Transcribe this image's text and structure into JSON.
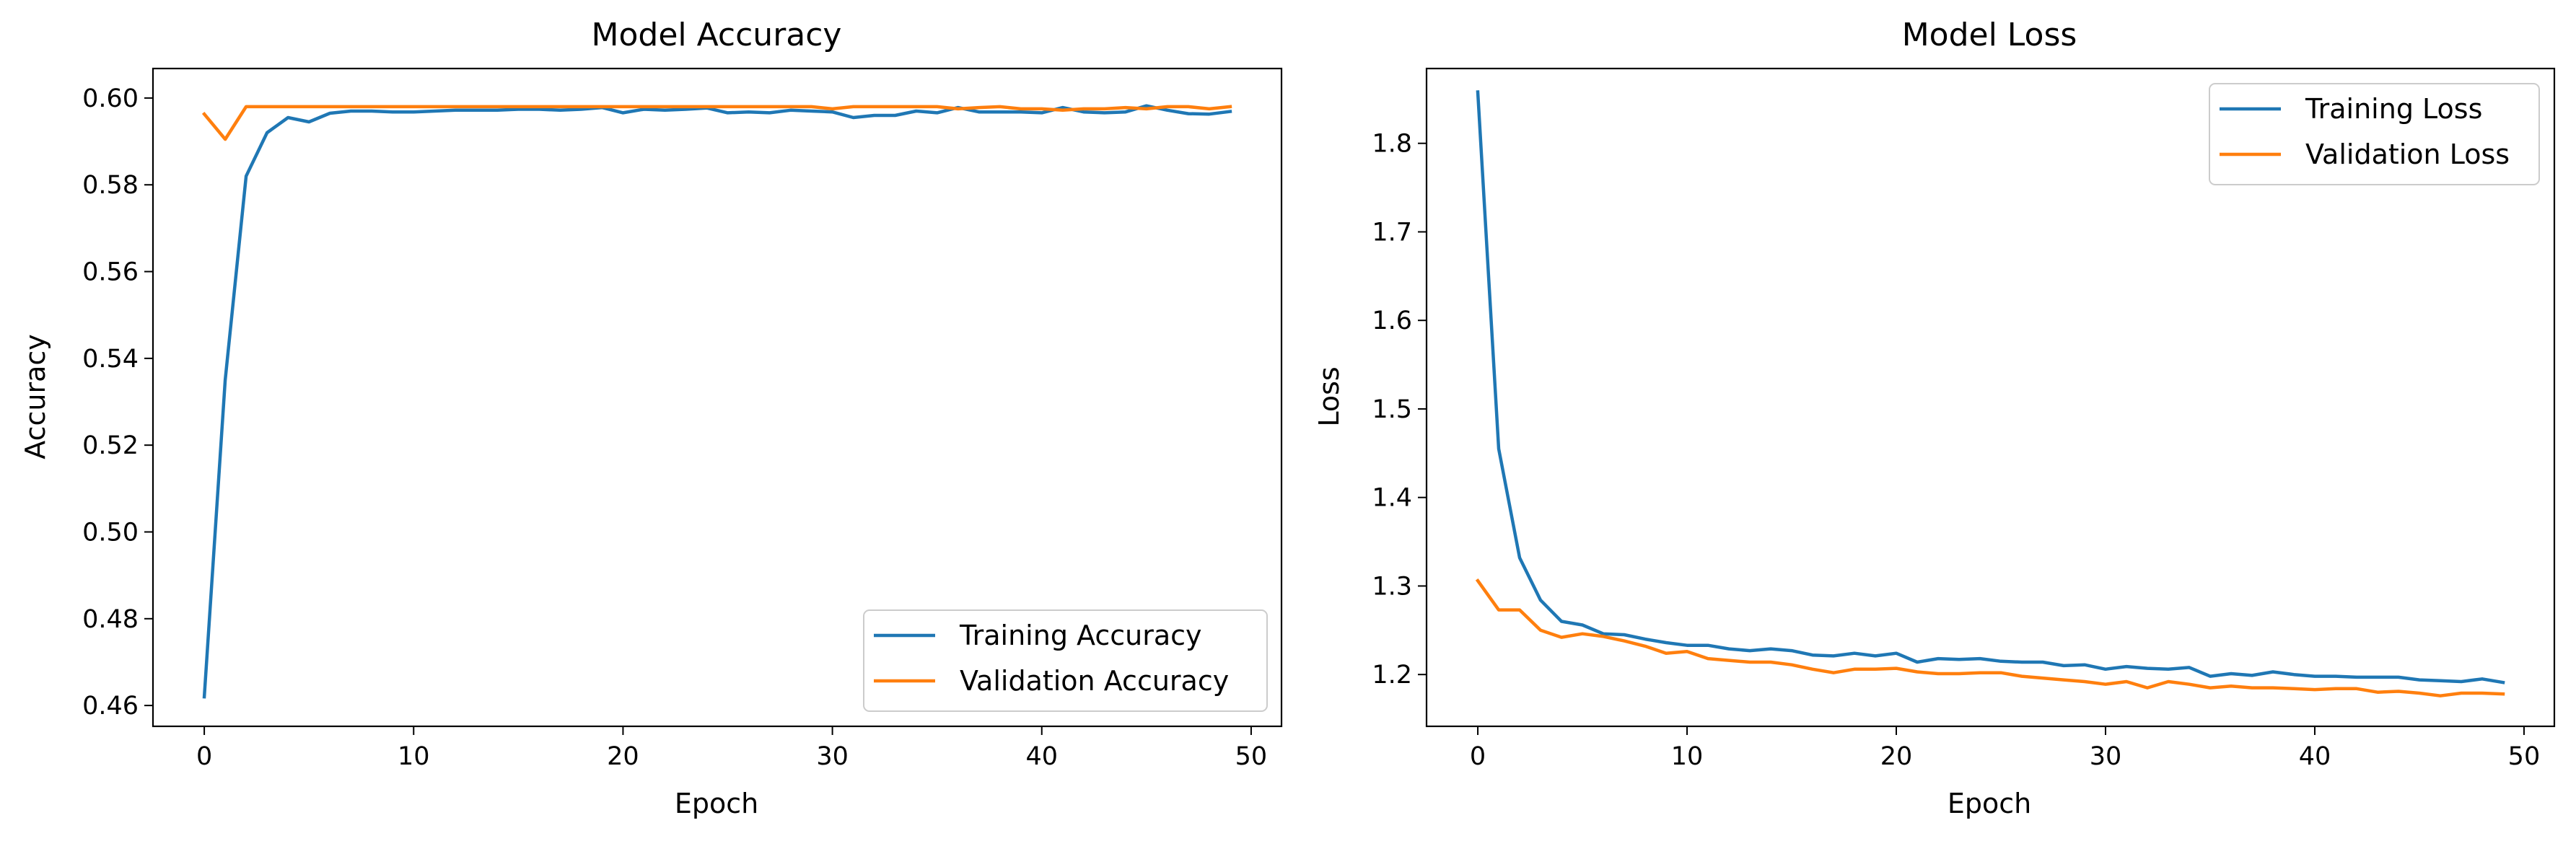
{
  "colors": {
    "training": "#1f77b4",
    "validation": "#ff7f0e"
  },
  "chart_data": [
    {
      "type": "line",
      "title": "Model Accuracy",
      "xlabel": "Epoch",
      "ylabel": "Accuracy",
      "xlim": [
        -2.45,
        51.45
      ],
      "ylim": [
        0.4552,
        0.6068
      ],
      "xticks": [
        0,
        10,
        20,
        30,
        40,
        50
      ],
      "yticks": [
        0.46,
        0.48,
        0.5,
        0.52,
        0.54,
        0.56,
        0.58,
        0.6
      ],
      "ytick_labels": [
        "0.46",
        "0.48",
        "0.50",
        "0.52",
        "0.54",
        "0.56",
        "0.58",
        "0.60"
      ],
      "legend": "lower-right",
      "grid": false,
      "x": [
        0,
        1,
        2,
        3,
        4,
        5,
        6,
        7,
        8,
        9,
        10,
        11,
        12,
        13,
        14,
        15,
        16,
        17,
        18,
        19,
        20,
        21,
        22,
        23,
        24,
        25,
        26,
        27,
        28,
        29,
        30,
        31,
        32,
        33,
        34,
        35,
        36,
        37,
        38,
        39,
        40,
        41,
        42,
        43,
        44,
        45,
        46,
        47,
        48,
        49
      ],
      "series": [
        {
          "name": "Training Accuracy",
          "color": "training",
          "values": [
            0.462,
            0.535,
            0.582,
            0.592,
            0.5955,
            0.5945,
            0.5965,
            0.597,
            0.597,
            0.5968,
            0.5968,
            0.597,
            0.5972,
            0.5972,
            0.5972,
            0.5974,
            0.5974,
            0.5972,
            0.5974,
            0.5978,
            0.5966,
            0.5974,
            0.5972,
            0.5974,
            0.5977,
            0.5966,
            0.5968,
            0.5966,
            0.5972,
            0.597,
            0.5968,
            0.5955,
            0.596,
            0.596,
            0.597,
            0.5966,
            0.5978,
            0.5968,
            0.5968,
            0.5968,
            0.5966,
            0.5978,
            0.5968,
            0.5966,
            0.5968,
            0.5982,
            0.5972,
            0.5964,
            0.5963,
            0.5969
          ]
        },
        {
          "name": "Validation Accuracy",
          "color": "validation",
          "values": [
            0.5963,
            0.5905,
            0.598,
            0.598,
            0.598,
            0.598,
            0.598,
            0.598,
            0.598,
            0.598,
            0.598,
            0.598,
            0.598,
            0.598,
            0.598,
            0.598,
            0.598,
            0.598,
            0.598,
            0.598,
            0.598,
            0.598,
            0.598,
            0.598,
            0.598,
            0.598,
            0.598,
            0.598,
            0.598,
            0.598,
            0.5975,
            0.598,
            0.598,
            0.598,
            0.598,
            0.598,
            0.5975,
            0.5978,
            0.598,
            0.5975,
            0.5975,
            0.5972,
            0.5975,
            0.5975,
            0.5978,
            0.5975,
            0.598,
            0.598,
            0.5975,
            0.598
          ]
        }
      ]
    },
    {
      "type": "line",
      "title": "Model Loss",
      "xlabel": "Epoch",
      "ylabel": "Loss",
      "xlim": [
        -2.45,
        51.45
      ],
      "ylim": [
        1.1415,
        1.8845
      ],
      "xticks": [
        0,
        10,
        20,
        30,
        40,
        50
      ],
      "yticks": [
        1.2,
        1.3,
        1.4,
        1.5,
        1.6,
        1.7,
        1.8
      ],
      "ytick_labels": [
        "1.2",
        "1.3",
        "1.4",
        "1.5",
        "1.6",
        "1.7",
        "1.8"
      ],
      "legend": "upper-right",
      "grid": false,
      "x": [
        0,
        1,
        2,
        3,
        4,
        5,
        6,
        7,
        8,
        9,
        10,
        11,
        12,
        13,
        14,
        15,
        16,
        17,
        18,
        19,
        20,
        21,
        22,
        23,
        24,
        25,
        26,
        27,
        28,
        29,
        30,
        31,
        32,
        33,
        34,
        35,
        36,
        37,
        38,
        39,
        40,
        41,
        42,
        43,
        44,
        45,
        46,
        47,
        48,
        49
      ],
      "series": [
        {
          "name": "Training Loss",
          "color": "training",
          "values": [
            1.858,
            1.455,
            1.332,
            1.284,
            1.26,
            1.256,
            1.246,
            1.245,
            1.24,
            1.236,
            1.233,
            1.233,
            1.229,
            1.227,
            1.229,
            1.227,
            1.222,
            1.221,
            1.224,
            1.221,
            1.224,
            1.214,
            1.218,
            1.217,
            1.218,
            1.215,
            1.214,
            1.214,
            1.21,
            1.211,
            1.206,
            1.209,
            1.207,
            1.206,
            1.208,
            1.198,
            1.201,
            1.199,
            1.203,
            1.2,
            1.198,
            1.198,
            1.197,
            1.197,
            1.197,
            1.194,
            1.193,
            1.192,
            1.195,
            1.191
          ]
        },
        {
          "name": "Validation Loss",
          "color": "validation",
          "values": [
            1.306,
            1.273,
            1.273,
            1.25,
            1.242,
            1.246,
            1.243,
            1.238,
            1.232,
            1.224,
            1.226,
            1.218,
            1.216,
            1.214,
            1.214,
            1.211,
            1.206,
            1.202,
            1.206,
            1.206,
            1.207,
            1.203,
            1.201,
            1.201,
            1.202,
            1.202,
            1.198,
            1.196,
            1.194,
            1.192,
            1.189,
            1.192,
            1.185,
            1.192,
            1.189,
            1.185,
            1.187,
            1.185,
            1.185,
            1.184,
            1.183,
            1.184,
            1.184,
            1.18,
            1.181,
            1.179,
            1.176,
            1.179,
            1.179,
            1.178
          ]
        }
      ]
    }
  ]
}
